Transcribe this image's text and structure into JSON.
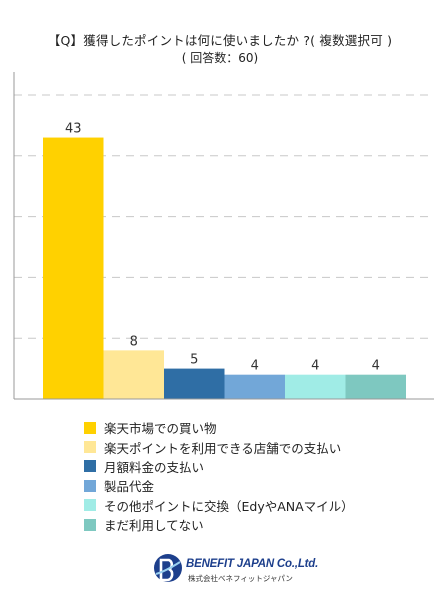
{
  "chart_data": {
    "type": "bar",
    "title": "【Q】獲得したポイントは何に使いましたか ?( 複数選択可 )",
    "subtitle": "( 回答数：60)",
    "categories": [
      "楽天市場での買い物",
      "楽天ポイントを利用できる店舗での支払い",
      "月額料金の支払い",
      "製品代金",
      "その他ポイントに交換（EdyやANAマイル）",
      "まだ利用してない"
    ],
    "values": [
      43,
      8,
      5,
      4,
      4,
      4
    ],
    "colors": [
      "#ffd100",
      "#ffe796",
      "#2f6ea5",
      "#72a7d8",
      "#a0ece6",
      "#7ec8c0"
    ],
    "ylim": [
      0,
      50
    ],
    "grid": true,
    "legend_position": "bottom"
  },
  "logo": {
    "name": "BENEFIT JAPAN Co.,Ltd.",
    "sub": "株式会社ベネフィットジャパン"
  }
}
